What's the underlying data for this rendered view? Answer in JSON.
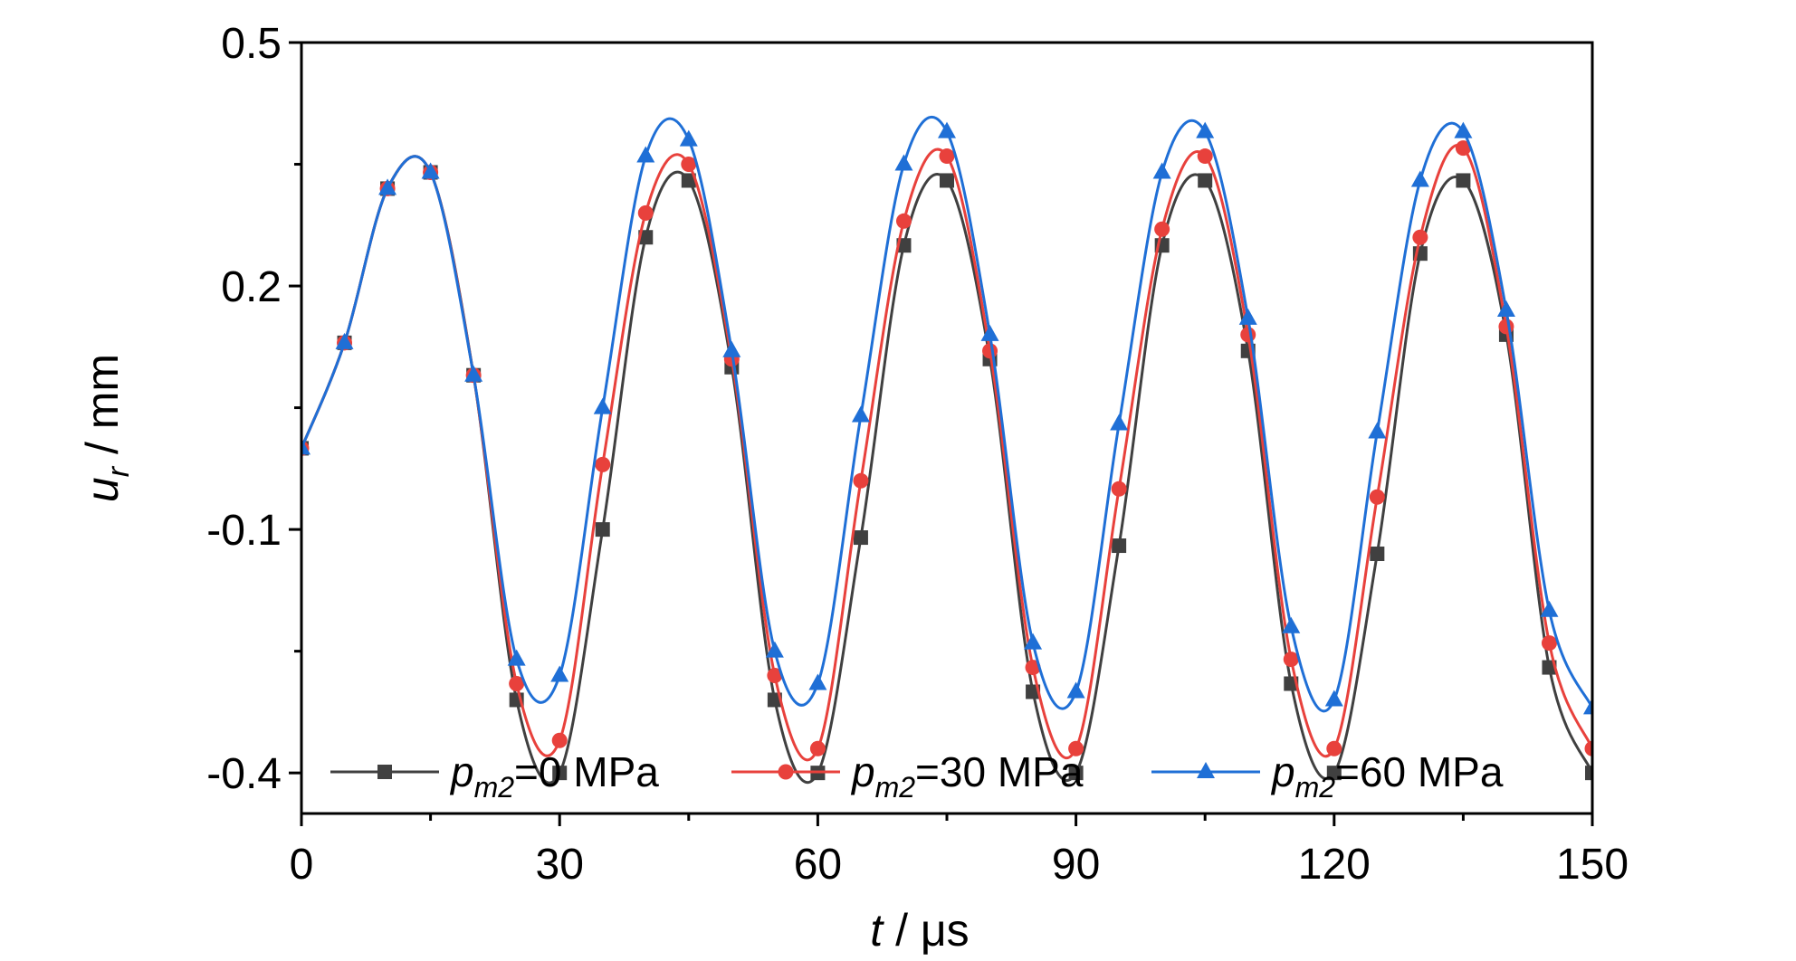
{
  "chart_data": {
    "type": "line",
    "xlabel": {
      "var": "t",
      "unit": " / μs"
    },
    "ylabel": {
      "var": "u",
      "sub": "r",
      "unit": " / mm"
    },
    "xlim": [
      0,
      150
    ],
    "ylim": [
      -0.45,
      0.5
    ],
    "xticks": [
      0,
      30,
      60,
      90,
      120,
      150
    ],
    "xtick_labels": [
      "0",
      "30",
      "60",
      "90",
      "120",
      "150"
    ],
    "yticks": [
      -0.4,
      -0.1,
      0.2,
      0.5
    ],
    "ytick_labels": [
      "-0.4",
      "-0.1",
      "0.2",
      "0.5"
    ],
    "grid": false,
    "legend_position": "bottom",
    "series": [
      {
        "name": "=0 MPa",
        "name_var": "p",
        "name_sub": "m2",
        "color": "#404040",
        "marker": "square",
        "x": [
          0,
          5,
          10,
          15,
          20,
          25,
          30,
          35,
          40,
          45,
          50,
          55,
          60,
          65,
          70,
          75,
          80,
          85,
          90,
          95,
          100,
          105,
          110,
          115,
          120,
          125,
          130,
          135,
          140,
          145,
          150
        ],
        "y": [
          0.0,
          0.13,
          0.32,
          0.34,
          0.09,
          -0.31,
          -0.4,
          -0.1,
          0.26,
          0.33,
          0.1,
          -0.31,
          -0.4,
          -0.11,
          0.25,
          0.33,
          0.11,
          -0.3,
          -0.4,
          -0.12,
          0.25,
          0.33,
          0.12,
          -0.29,
          -0.4,
          -0.13,
          0.24,
          0.33,
          0.14,
          -0.27,
          -0.4
        ]
      },
      {
        "name": "=30 MPa",
        "name_var": "p",
        "name_sub": "m2",
        "color": "#e8413c",
        "marker": "circle",
        "x": [
          0,
          5,
          10,
          15,
          20,
          25,
          30,
          35,
          40,
          45,
          50,
          55,
          60,
          65,
          70,
          75,
          80,
          85,
          90,
          95,
          100,
          105,
          110,
          115,
          120,
          125,
          130,
          135,
          140,
          145,
          150
        ],
        "y": [
          0.0,
          0.13,
          0.32,
          0.34,
          0.09,
          -0.29,
          -0.36,
          -0.02,
          0.29,
          0.35,
          0.11,
          -0.28,
          -0.37,
          -0.04,
          0.28,
          0.36,
          0.12,
          -0.27,
          -0.37,
          -0.05,
          0.27,
          0.36,
          0.14,
          -0.26,
          -0.37,
          -0.06,
          0.26,
          0.37,
          0.15,
          -0.24,
          -0.37
        ]
      },
      {
        "name": "=60 MPa",
        "name_var": "p",
        "name_sub": "m2",
        "color": "#1f6fd6",
        "marker": "triangle",
        "x": [
          0,
          5,
          10,
          15,
          20,
          25,
          30,
          35,
          40,
          45,
          50,
          55,
          60,
          65,
          70,
          75,
          80,
          85,
          90,
          95,
          100,
          105,
          110,
          115,
          120,
          125,
          130,
          135,
          140,
          145,
          150
        ],
        "y": [
          0.0,
          0.13,
          0.32,
          0.34,
          0.09,
          -0.26,
          -0.28,
          0.05,
          0.36,
          0.38,
          0.12,
          -0.25,
          -0.29,
          0.04,
          0.35,
          0.39,
          0.14,
          -0.24,
          -0.3,
          0.03,
          0.34,
          0.39,
          0.16,
          -0.22,
          -0.31,
          0.02,
          0.33,
          0.39,
          0.17,
          -0.2,
          -0.32
        ]
      }
    ]
  }
}
